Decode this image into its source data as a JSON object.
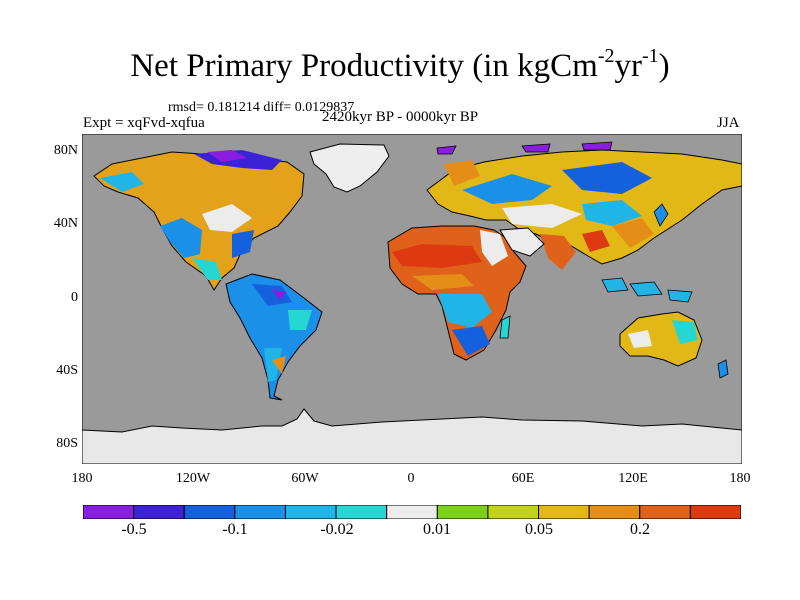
{
  "title": {
    "main": "Net Primary Productivity (in kgCm",
    "exp1": "-2",
    "mid": "yr",
    "exp2": "-1",
    "end": ")"
  },
  "stats": "rmsd= 0.181214 diff= 0.0129837",
  "experiment": "Expt = xqFvd-xqfua",
  "period": "2420kyr BP - 0000kyr BP",
  "season": "JJA",
  "lat_labels": [
    "80N",
    "40N",
    "0",
    "40S",
    "80S"
  ],
  "lon_labels": [
    "180",
    "120W",
    "60W",
    "0",
    "60E",
    "120E",
    "180"
  ],
  "colorbar": {
    "colors": [
      "#8a1ee0",
      "#3b22d6",
      "#1560dd",
      "#1a90e8",
      "#21b4e6",
      "#25d6d3",
      "#ececec",
      "#7bd11a",
      "#c3d21a",
      "#e2b817",
      "#e48e17",
      "#e0611a",
      "#dd3a12"
    ],
    "labels": [
      "-0.5",
      "-0.1",
      "-0.02",
      "0.01",
      "0.05",
      "0.2"
    ]
  },
  "colors": {
    "ocean": "#9a9a9a",
    "ice": "#e8e8e8",
    "coast": "#000000"
  }
}
